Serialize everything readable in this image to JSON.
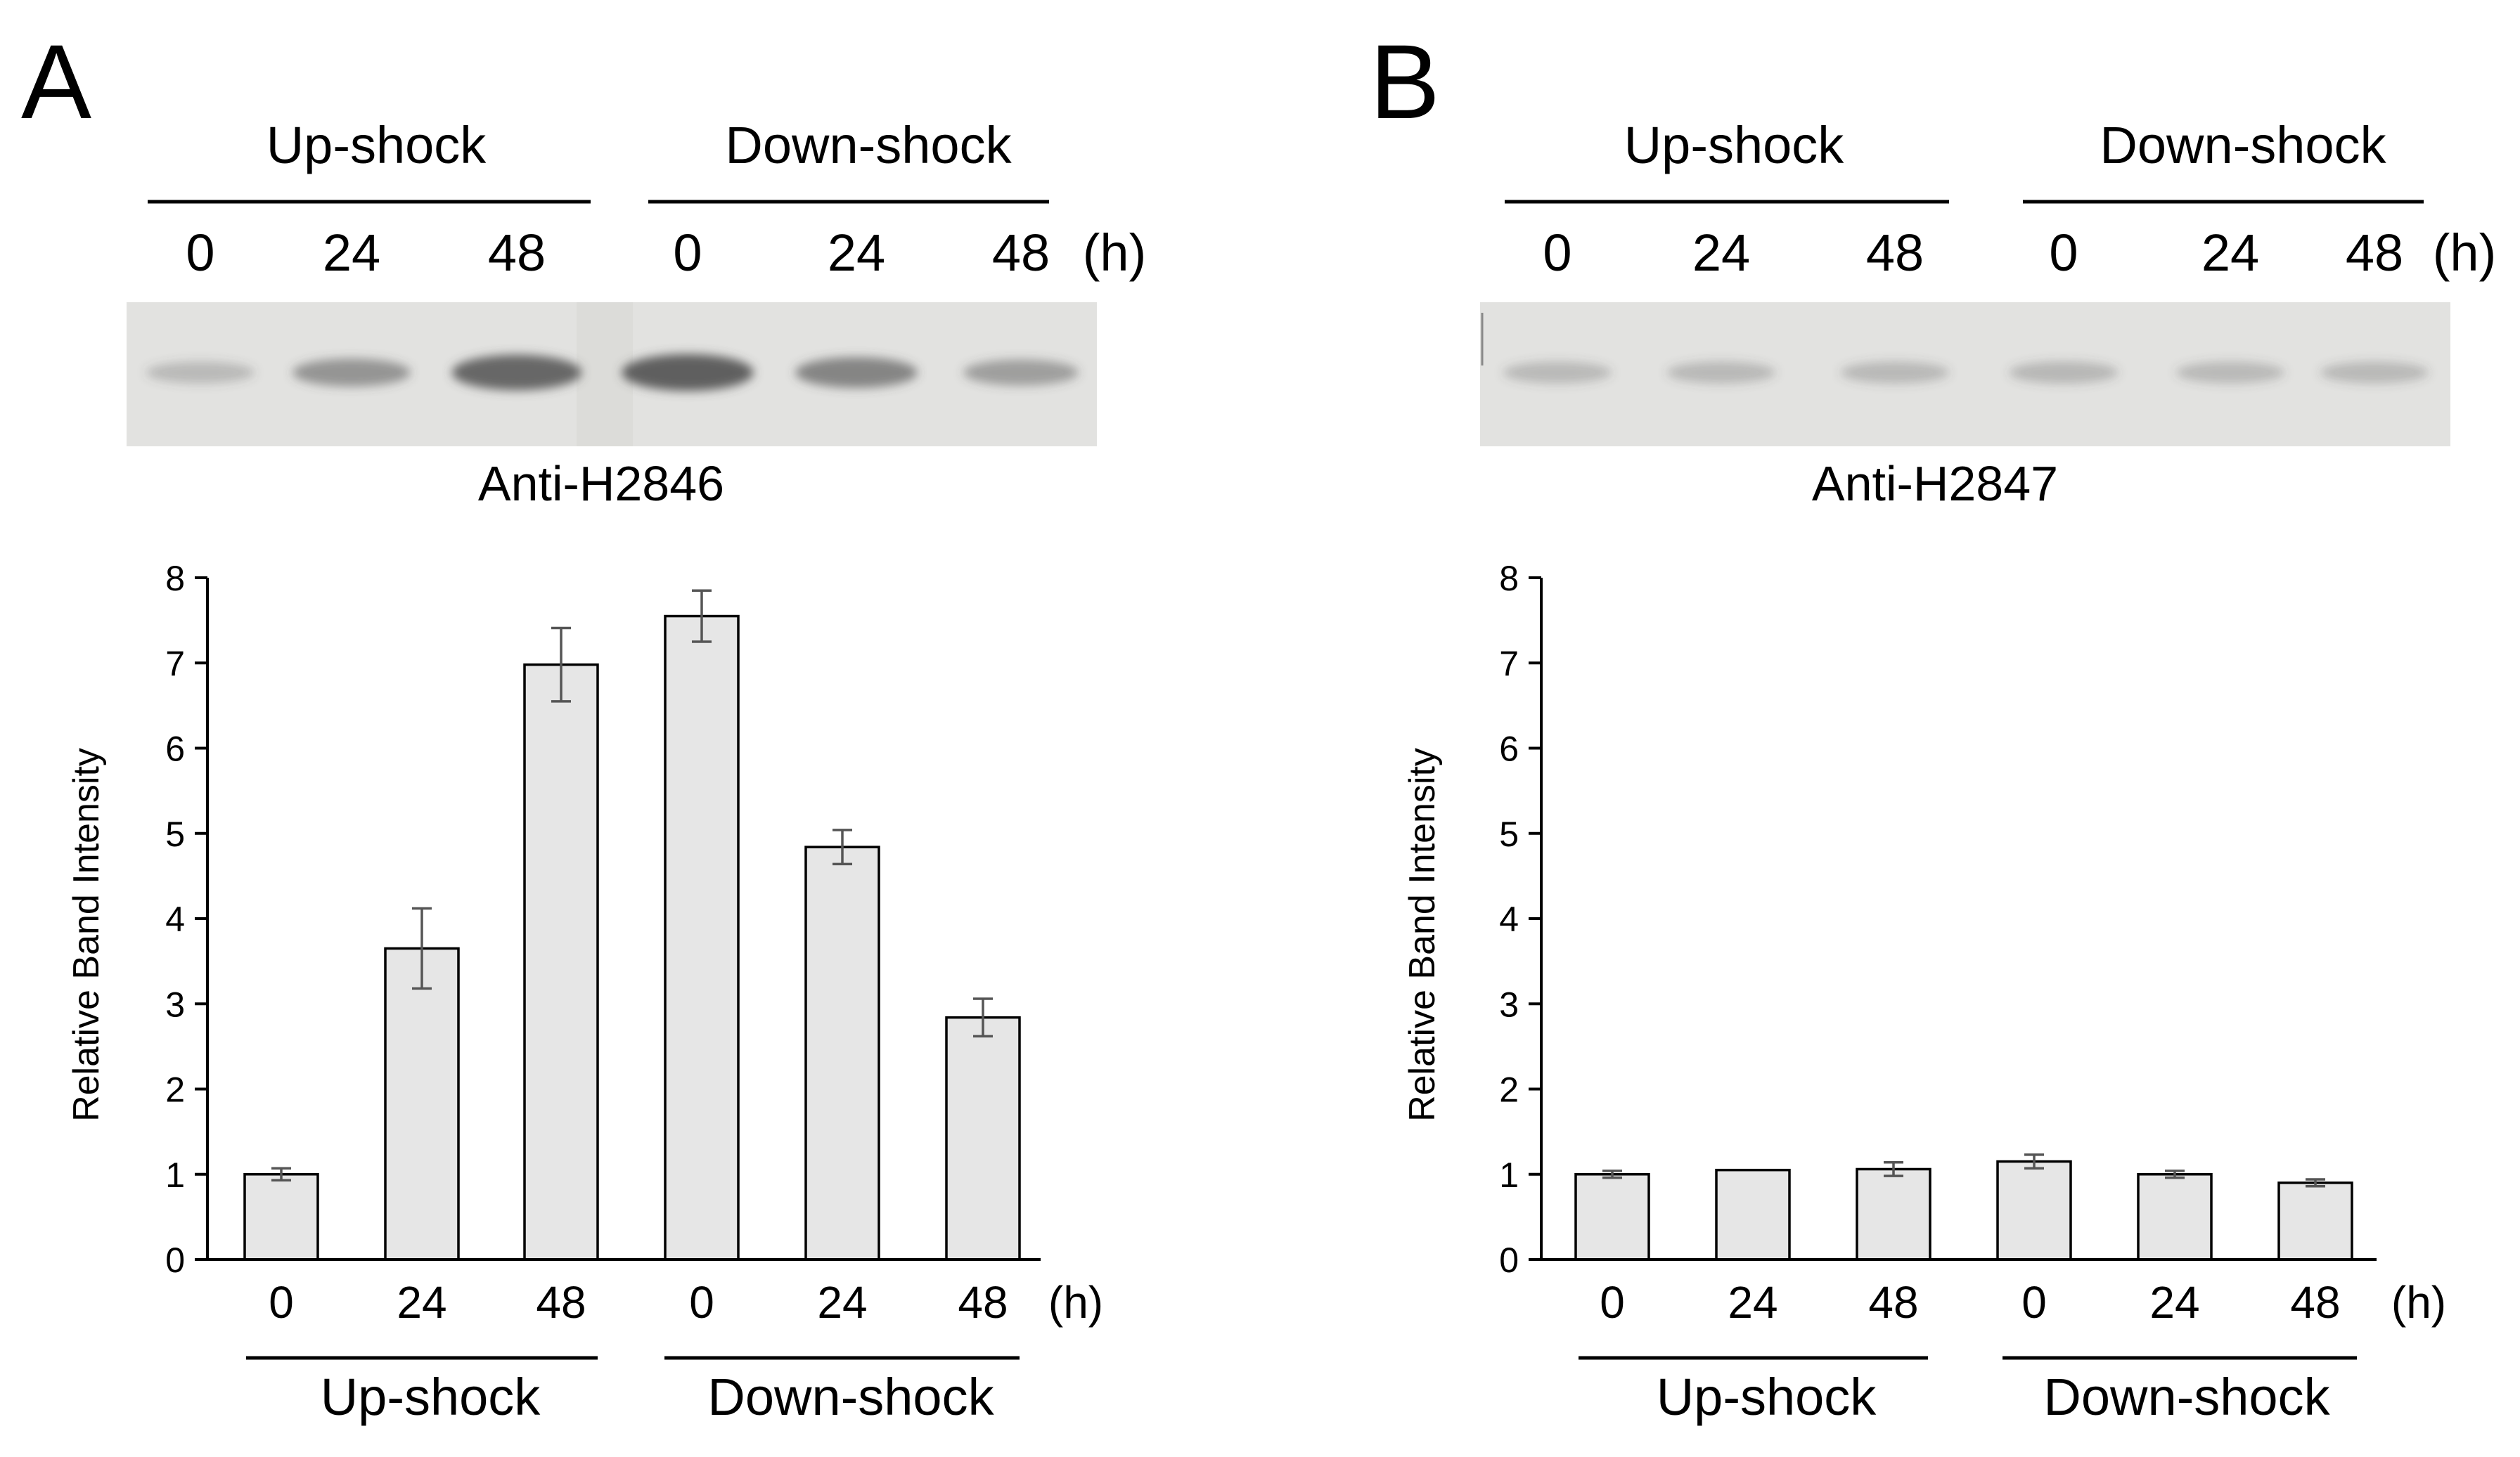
{
  "chart_data": [
    {
      "panel": "A",
      "type": "bar",
      "blot": {
        "antibody_label": "Anti-H2846",
        "groups": [
          "Up-shock",
          "Down-shock"
        ],
        "lanes": [
          "0",
          "24",
          "48",
          "0",
          "24",
          "48"
        ],
        "unit": "(h)",
        "band_intensity": [
          1.0,
          3.65,
          6.98,
          7.55,
          4.84,
          2.84
        ]
      },
      "categories": [
        "0",
        "24",
        "48",
        "0",
        "24",
        "48"
      ],
      "x_unit": "(h)",
      "x_groups": [
        "Up-shock",
        "Down-shock"
      ],
      "values": [
        1.0,
        3.65,
        6.98,
        7.55,
        4.84,
        2.84
      ],
      "errors": [
        0.07,
        0.47,
        0.43,
        0.3,
        0.2,
        0.22
      ],
      "ylabel": "Relative Band Intensity",
      "ylim": [
        0,
        8
      ],
      "yticks": [
        "0",
        "1",
        "2",
        "3",
        "4",
        "5",
        "6",
        "7",
        "8"
      ]
    },
    {
      "panel": "B",
      "type": "bar",
      "blot": {
        "antibody_label": "Anti-H2847",
        "groups": [
          "Up-shock",
          "Down-shock"
        ],
        "lanes": [
          "0",
          "24",
          "48",
          "0",
          "24",
          "48"
        ],
        "unit": "(h)",
        "band_intensity": [
          1.0,
          1.05,
          1.06,
          1.15,
          1.0,
          0.9
        ]
      },
      "categories": [
        "0",
        "24",
        "48",
        "0",
        "24",
        "48"
      ],
      "x_unit": "(h)",
      "x_groups": [
        "Up-shock",
        "Down-shock"
      ],
      "values": [
        1.0,
        1.05,
        1.06,
        1.15,
        1.0,
        0.9
      ],
      "errors": [
        0.04,
        0.0,
        0.08,
        0.08,
        0.04,
        0.04
      ],
      "ylabel": "Relative Band Intensity",
      "ylim": [
        0,
        8
      ],
      "yticks": [
        "0",
        "1",
        "2",
        "3",
        "4",
        "5",
        "6",
        "7",
        "8"
      ]
    }
  ],
  "colors": {
    "bar_fill": "#e6e6e6",
    "bar_stroke": "#000000",
    "error_bar": "#555555",
    "blot_background": "#e2e2e0",
    "band": "#4a4a4a"
  }
}
